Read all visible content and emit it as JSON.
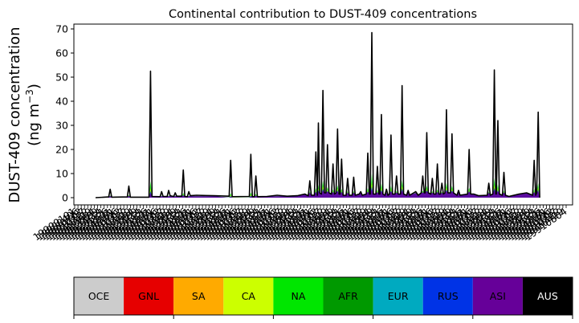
{
  "chart_data": {
    "type": "area",
    "title": "Continental contribution to DUST-409 concentrations",
    "ylabel_line1": "DUST-409 concentration",
    "ylabel_unit_base": "(ng m",
    "ylabel_unit_sup": "−3",
    "ylabel_unit_end": ")",
    "ylim": [
      -3,
      72
    ],
    "yticks": [
      0,
      10,
      20,
      30,
      40,
      50,
      60,
      70
    ],
    "x_tick_labels": [
      "19900101",
      "19900406",
      "19900712",
      "19901017",
      "19910122",
      "19910429",
      "19910804",
      "19911109",
      "19920214",
      "19920521",
      "19920826",
      "19921201"
    ],
    "x_index_range": [
      0,
      180
    ],
    "total_peaks": [
      {
        "x": 0.0,
        "y": 0.0
      },
      {
        "x": 5.2,
        "y": 0.3
      },
      {
        "x": 5.8,
        "y": 3.5
      },
      {
        "x": 6.4,
        "y": 0.2
      },
      {
        "x": 12.6,
        "y": 0.3
      },
      {
        "x": 13.2,
        "y": 4.8
      },
      {
        "x": 13.8,
        "y": 0.2
      },
      {
        "x": 21.2,
        "y": 0.2
      },
      {
        "x": 21.8,
        "y": 52.5
      },
      {
        "x": 22.4,
        "y": 0.5
      },
      {
        "x": 25.6,
        "y": 0.4
      },
      {
        "x": 26.2,
        "y": 2.5
      },
      {
        "x": 26.8,
        "y": 0.5
      },
      {
        "x": 28.4,
        "y": 0.5
      },
      {
        "x": 29.0,
        "y": 3.0
      },
      {
        "x": 29.6,
        "y": 0.8
      },
      {
        "x": 31.0,
        "y": 0.5
      },
      {
        "x": 31.6,
        "y": 2.0
      },
      {
        "x": 32.2,
        "y": 0.6
      },
      {
        "x": 34.2,
        "y": 0.6
      },
      {
        "x": 34.8,
        "y": 11.5
      },
      {
        "x": 35.4,
        "y": 0.5
      },
      {
        "x": 36.4,
        "y": 0.4
      },
      {
        "x": 37.0,
        "y": 2.5
      },
      {
        "x": 37.6,
        "y": 0.8
      },
      {
        "x": 40.0,
        "y": 1.0
      },
      {
        "x": 47.0,
        "y": 0.8
      },
      {
        "x": 53.0,
        "y": 0.6
      },
      {
        "x": 53.6,
        "y": 15.5
      },
      {
        "x": 54.2,
        "y": 0.4
      },
      {
        "x": 61.0,
        "y": 0.5
      },
      {
        "x": 61.6,
        "y": 18.0
      },
      {
        "x": 62.2,
        "y": 0.4
      },
      {
        "x": 63.0,
        "y": 0.4
      },
      {
        "x": 63.6,
        "y": 9.0
      },
      {
        "x": 64.2,
        "y": 0.4
      },
      {
        "x": 68.0,
        "y": 0.5
      },
      {
        "x": 72.0,
        "y": 1.0
      },
      {
        "x": 76.0,
        "y": 0.6
      },
      {
        "x": 80.0,
        "y": 0.8
      },
      {
        "x": 83.0,
        "y": 1.5
      },
      {
        "x": 84.4,
        "y": 0.8
      },
      {
        "x": 85.0,
        "y": 7.0
      },
      {
        "x": 85.6,
        "y": 1.0
      },
      {
        "x": 86.8,
        "y": 1.0
      },
      {
        "x": 87.4,
        "y": 19.0
      },
      {
        "x": 88.0,
        "y": 1.0
      },
      {
        "x": 88.0,
        "y": 1.0
      },
      {
        "x": 88.4,
        "y": 31.0
      },
      {
        "x": 88.9,
        "y": 2.0
      },
      {
        "x": 89.6,
        "y": 1.5
      },
      {
        "x": 90.2,
        "y": 44.5
      },
      {
        "x": 90.8,
        "y": 2.0
      },
      {
        "x": 91.4,
        "y": 2.0
      },
      {
        "x": 92.0,
        "y": 22.0
      },
      {
        "x": 92.6,
        "y": 2.0
      },
      {
        "x": 93.6,
        "y": 1.5
      },
      {
        "x": 94.2,
        "y": 14.0
      },
      {
        "x": 94.8,
        "y": 1.5
      },
      {
        "x": 95.4,
        "y": 2.0
      },
      {
        "x": 96.0,
        "y": 28.5
      },
      {
        "x": 96.6,
        "y": 1.5
      },
      {
        "x": 97.0,
        "y": 1.5
      },
      {
        "x": 97.6,
        "y": 16.0
      },
      {
        "x": 98.2,
        "y": 1.0
      },
      {
        "x": 99.4,
        "y": 1.0
      },
      {
        "x": 100.0,
        "y": 8.0
      },
      {
        "x": 100.6,
        "y": 1.0
      },
      {
        "x": 101.8,
        "y": 1.0
      },
      {
        "x": 102.4,
        "y": 8.5
      },
      {
        "x": 103.0,
        "y": 1.0
      },
      {
        "x": 104.6,
        "y": 1.5
      },
      {
        "x": 105.2,
        "y": 2.5
      },
      {
        "x": 105.8,
        "y": 1.0
      },
      {
        "x": 107.4,
        "y": 1.5
      },
      {
        "x": 108.0,
        "y": 18.5
      },
      {
        "x": 108.6,
        "y": 1.5
      },
      {
        "x": 109.0,
        "y": 1.5
      },
      {
        "x": 109.6,
        "y": 68.5
      },
      {
        "x": 110.2,
        "y": 1.5
      },
      {
        "x": 111.2,
        "y": 1.5
      },
      {
        "x": 111.8,
        "y": 13.0
      },
      {
        "x": 112.4,
        "y": 1.5
      },
      {
        "x": 112.8,
        "y": 1.5
      },
      {
        "x": 113.4,
        "y": 34.5
      },
      {
        "x": 114.0,
        "y": 1.5
      },
      {
        "x": 114.8,
        "y": 1.0
      },
      {
        "x": 115.4,
        "y": 3.5
      },
      {
        "x": 116.0,
        "y": 1.0
      },
      {
        "x": 116.6,
        "y": 1.5
      },
      {
        "x": 117.2,
        "y": 26.0
      },
      {
        "x": 117.8,
        "y": 1.5
      },
      {
        "x": 118.8,
        "y": 1.5
      },
      {
        "x": 119.4,
        "y": 9.0
      },
      {
        "x": 120.0,
        "y": 1.5
      },
      {
        "x": 121.0,
        "y": 1.5
      },
      {
        "x": 121.6,
        "y": 46.5
      },
      {
        "x": 122.2,
        "y": 1.5
      },
      {
        "x": 123.4,
        "y": 1.0
      },
      {
        "x": 124.0,
        "y": 3.0
      },
      {
        "x": 124.6,
        "y": 1.0
      },
      {
        "x": 127.0,
        "y": 2.5
      },
      {
        "x": 128.0,
        "y": 1.0
      },
      {
        "x": 129.2,
        "y": 2.0
      },
      {
        "x": 129.8,
        "y": 9.0
      },
      {
        "x": 130.4,
        "y": 2.0
      },
      {
        "x": 130.8,
        "y": 2.0
      },
      {
        "x": 131.4,
        "y": 27.0
      },
      {
        "x": 132.0,
        "y": 2.0
      },
      {
        "x": 133.0,
        "y": 1.5
      },
      {
        "x": 133.6,
        "y": 8.0
      },
      {
        "x": 134.2,
        "y": 1.5
      },
      {
        "x": 135.0,
        "y": 1.5
      },
      {
        "x": 135.6,
        "y": 14.0
      },
      {
        "x": 136.2,
        "y": 1.5
      },
      {
        "x": 136.8,
        "y": 1.5
      },
      {
        "x": 137.4,
        "y": 6.0
      },
      {
        "x": 138.0,
        "y": 1.5
      },
      {
        "x": 138.6,
        "y": 2.0
      },
      {
        "x": 139.2,
        "y": 36.5
      },
      {
        "x": 139.8,
        "y": 2.0
      },
      {
        "x": 140.8,
        "y": 2.0
      },
      {
        "x": 141.4,
        "y": 26.5
      },
      {
        "x": 142.0,
        "y": 2.0
      },
      {
        "x": 143.4,
        "y": 1.0
      },
      {
        "x": 144.0,
        "y": 3.0
      },
      {
        "x": 144.6,
        "y": 1.0
      },
      {
        "x": 147.6,
        "y": 1.5
      },
      {
        "x": 148.2,
        "y": 20.0
      },
      {
        "x": 148.8,
        "y": 1.5
      },
      {
        "x": 150.0,
        "y": 1.5
      },
      {
        "x": 152.0,
        "y": 0.8
      },
      {
        "x": 155.4,
        "y": 1.0
      },
      {
        "x": 156.0,
        "y": 6.0
      },
      {
        "x": 156.6,
        "y": 1.0
      },
      {
        "x": 157.6,
        "y": 1.5
      },
      {
        "x": 158.2,
        "y": 53.0
      },
      {
        "x": 158.8,
        "y": 1.5
      },
      {
        "x": 159.0,
        "y": 1.5
      },
      {
        "x": 159.6,
        "y": 32.0
      },
      {
        "x": 160.2,
        "y": 1.5
      },
      {
        "x": 161.4,
        "y": 1.0
      },
      {
        "x": 162.0,
        "y": 10.5
      },
      {
        "x": 162.6,
        "y": 1.0
      },
      {
        "x": 164.0,
        "y": 0.5
      },
      {
        "x": 168.0,
        "y": 1.5
      },
      {
        "x": 171.0,
        "y": 2.0
      },
      {
        "x": 173.4,
        "y": 1.0
      },
      {
        "x": 174.0,
        "y": 15.5
      },
      {
        "x": 174.6,
        "y": 1.0
      },
      {
        "x": 175.0,
        "y": 2.0
      },
      {
        "x": 175.6,
        "y": 35.5
      },
      {
        "x": 176.2,
        "y": 0.0
      }
    ],
    "base_segments": [
      {
        "x0": 0.0,
        "x1": 52.0,
        "y": 0.3
      },
      {
        "x0": 52.0,
        "x1": 62.0,
        "y": 0.0
      },
      {
        "x0": 62.0,
        "x1": 82.0,
        "y": 0.3
      },
      {
        "x0": 82.0,
        "x1": 176.2,
        "y": 1.0
      }
    ],
    "legend": {
      "position": "bottom",
      "entries": [
        {
          "label": "OCE",
          "color": "#cccccc",
          "text_color": "#000000"
        },
        {
          "label": "GNL",
          "color": "#e60000",
          "text_color": "#000000"
        },
        {
          "label": "SA",
          "color": "#ffaa00",
          "text_color": "#000000"
        },
        {
          "label": "CA",
          "color": "#ccff00",
          "text_color": "#000000"
        },
        {
          "label": "NA",
          "color": "#00e600",
          "text_color": "#000000"
        },
        {
          "label": "AFR",
          "color": "#009900",
          "text_color": "#000000"
        },
        {
          "label": "EUR",
          "color": "#00aac0",
          "text_color": "#000000"
        },
        {
          "label": "RUS",
          "color": "#0033e6",
          "text_color": "#000000"
        },
        {
          "label": "ASI",
          "color": "#660099",
          "text_color": "#000000"
        },
        {
          "label": "AUS",
          "color": "#000000",
          "text_color": "#ffffff"
        }
      ]
    },
    "grid": false
  }
}
